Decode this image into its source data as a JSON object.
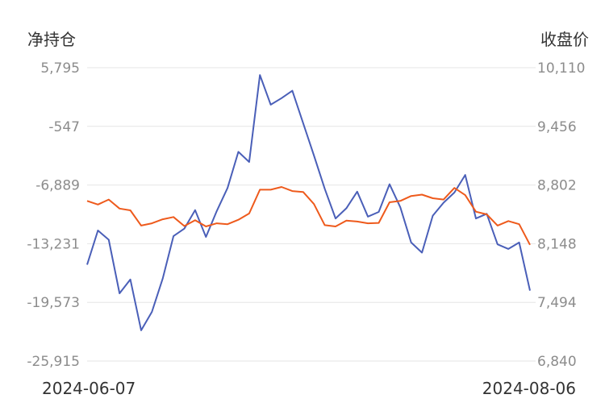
{
  "chart_data": {
    "type": "line",
    "left_axis_title": "净持仓",
    "right_axis_title": "收盘价",
    "left_ticks": [
      "5,795",
      "-547",
      "-6,889",
      "-13,231",
      "-19,573",
      "-25,915"
    ],
    "right_ticks": [
      "10,110",
      "9,456",
      "8,802",
      "8,148",
      "7,494",
      "6,840"
    ],
    "left_ylim": [
      -25915,
      5795
    ],
    "right_ylim": [
      6840,
      10110
    ],
    "x_start_label": "2024-06-07",
    "x_end_label": "2024-08-06",
    "grid": true,
    "colors": {
      "net_position": "#4a5fb8",
      "close": "#ee5a1c"
    },
    "series": [
      {
        "key": "net_position",
        "axis": "left",
        "values": [
          -15500,
          -11800,
          -12800,
          -18600,
          -17100,
          -22600,
          -20600,
          -17000,
          -12400,
          -11600,
          -9600,
          -12500,
          -9700,
          -7200,
          -3300,
          -4400,
          5000,
          1800,
          2500,
          3300,
          -200,
          -3700,
          -7300,
          -10500,
          -9400,
          -7600,
          -10300,
          -9800,
          -6800,
          -9300,
          -13100,
          -14200,
          -10200,
          -8800,
          -7700,
          -5800,
          -10500,
          -10000,
          -13300,
          -13800,
          -13100,
          -18300
        ]
      },
      {
        "key": "close",
        "axis": "right",
        "values": [
          8625,
          8585,
          8640,
          8540,
          8520,
          8350,
          8375,
          8420,
          8445,
          8345,
          8410,
          8340,
          8375,
          8365,
          8415,
          8485,
          8750,
          8750,
          8780,
          8735,
          8725,
          8590,
          8355,
          8340,
          8405,
          8395,
          8375,
          8380,
          8610,
          8625,
          8680,
          8695,
          8655,
          8640,
          8770,
          8690,
          8505,
          8475,
          8350,
          8400,
          8365,
          8135
        ]
      }
    ]
  }
}
